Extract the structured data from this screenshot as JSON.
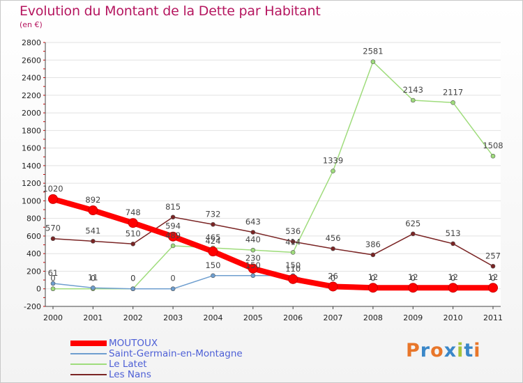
{
  "title": "Evolution du Montant de la Dette par Habitant",
  "unit": "(en €)",
  "logo": {
    "text": "Proxiti",
    "letters": [
      {
        "char": "P",
        "color": "#e8762a"
      },
      {
        "char": "r",
        "color": "#3a87c8"
      },
      {
        "char": "o",
        "color": "#e8762a"
      },
      {
        "char": "x",
        "color": "#3a87c8"
      },
      {
        "char": "i",
        "color": "#a7c43a"
      },
      {
        "char": "t",
        "color": "#3a87c8"
      },
      {
        "char": "i",
        "color": "#e8762a"
      }
    ]
  },
  "chart_data": {
    "type": "line",
    "title": "Evolution du Montant de la Dette par Habitant",
    "ylabel": "(en €)",
    "xlabel": "",
    "categories": [
      "2000",
      "2001",
      "2002",
      "2003",
      "2004",
      "2005",
      "2006",
      "2007",
      "2008",
      "2009",
      "2010",
      "2011"
    ],
    "ylim": [
      -200,
      2800
    ],
    "yticks": [
      -200,
      0,
      200,
      400,
      600,
      800,
      1000,
      1200,
      1400,
      1600,
      1800,
      2000,
      2200,
      2400,
      2600,
      2800
    ],
    "grid": "horizontal",
    "legend_position": "bottom-left",
    "series": [
      {
        "name": "MOUTOUX",
        "color": "#ff0000",
        "values": [
          1020,
          892,
          748,
          594,
          424,
          230,
          110,
          26,
          12,
          12,
          12,
          12
        ],
        "labels": [
          "1020",
          "892",
          "748",
          "594",
          "424",
          "230",
          "110",
          "26",
          "12",
          "12",
          "12",
          "12"
        ]
      },
      {
        "name": "Saint-Germain-en-Montagne",
        "color": "#6e9ecf",
        "values": [
          61,
          11,
          0,
          0,
          150,
          150,
          150,
          0,
          0,
          0,
          0,
          0
        ],
        "labels": [
          "61",
          "11",
          "0",
          "0",
          "150",
          "150",
          "150",
          "0",
          "0",
          "0",
          "0",
          "0"
        ]
      },
      {
        "name": "Le Latet",
        "color": "#9fdc7c",
        "values": [
          0,
          0,
          0,
          489,
          465,
          440,
          414,
          1339,
          2581,
          2143,
          2117,
          1508
        ],
        "labels": [
          "0",
          "0",
          "0",
          "489",
          "465",
          "440",
          "414",
          "1339",
          "2581",
          "2143",
          "2117",
          "1508"
        ]
      },
      {
        "name": "Les Nans",
        "color": "#7a2424",
        "values": [
          570,
          541,
          510,
          815,
          732,
          643,
          536,
          456,
          386,
          625,
          513,
          257
        ],
        "labels": [
          "570",
          "541",
          "510",
          "815",
          "732",
          "643",
          "536",
          "456",
          "386",
          "625",
          "513",
          "257"
        ]
      }
    ]
  }
}
